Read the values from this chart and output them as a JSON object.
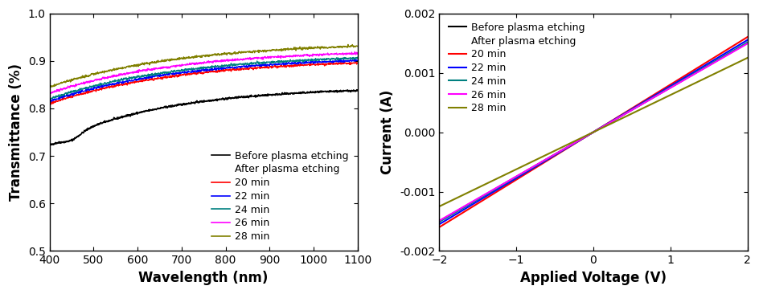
{
  "left_plot": {
    "xlabel": "Wavelength (nm)",
    "ylabel": "Transmittance (%)",
    "xlim": [
      400,
      1100
    ],
    "ylim": [
      0.5,
      1.0
    ],
    "yticks": [
      0.5,
      0.6,
      0.7,
      0.8,
      0.9,
      1.0
    ],
    "xticks": [
      400,
      500,
      600,
      700,
      800,
      900,
      1000,
      1100
    ],
    "legend_before": "Before plasma etching",
    "legend_after_title": "After plasma etching",
    "legend_after_labels": [
      "20 min",
      "22 min",
      "24 min",
      "26 min",
      "28 min"
    ],
    "colors_before": "#000000",
    "colors_after": [
      "#ff0000",
      "#0000ff",
      "#008080",
      "#ff00ff",
      "#808000"
    ]
  },
  "right_plot": {
    "xlabel": "Applied Voltage (V)",
    "ylabel": "Current (A)",
    "xlim": [
      -2,
      2
    ],
    "ylim": [
      -0.002,
      0.002
    ],
    "yticks": [
      -0.002,
      -0.001,
      0.0,
      0.001,
      0.002
    ],
    "xticks": [
      -2,
      -1,
      0,
      1,
      2
    ],
    "legend_before": "Before plasma etching",
    "legend_after_title": "After plasma etching",
    "legend_after_labels": [
      "20 min",
      "22 min",
      "24 min",
      "26 min",
      "28 min"
    ],
    "colors_before": "#000000",
    "colors_after": [
      "#ff0000",
      "#0000ff",
      "#008080",
      "#ff00ff",
      "#808000"
    ],
    "slopes": [
      0.00075,
      0.0008,
      0.000775,
      0.000755,
      0.000745,
      0.000625
    ]
  },
  "background_color": "#ffffff",
  "font_size_label": 12,
  "font_size_tick": 10,
  "font_size_legend": 9
}
